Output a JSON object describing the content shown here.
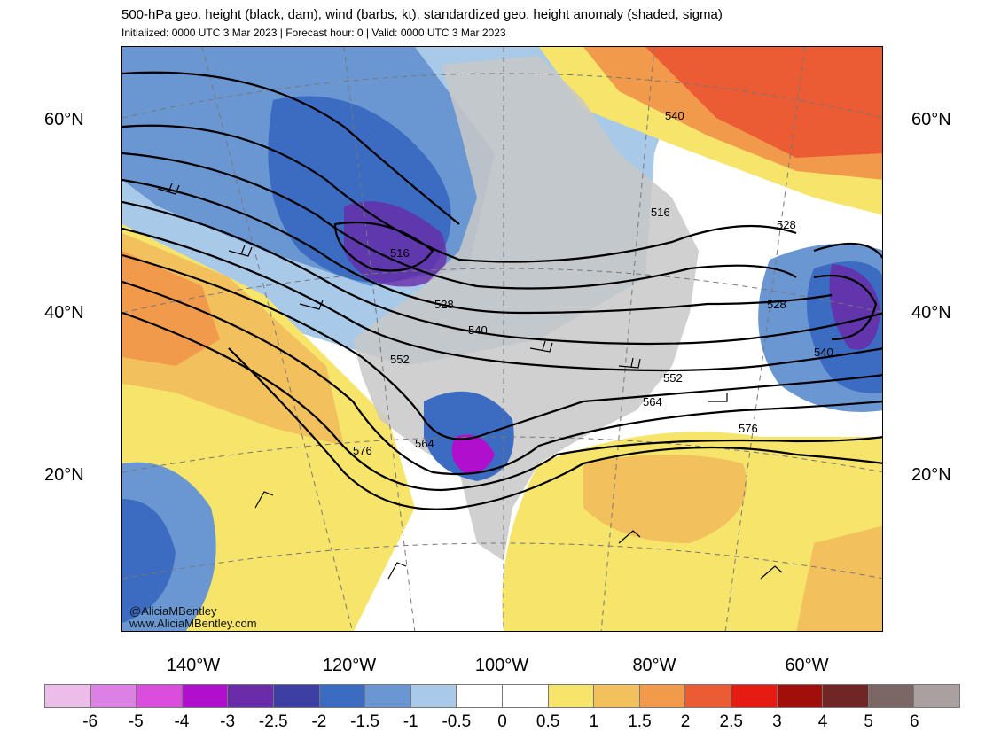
{
  "title": "500-hPa geo. height (black, dam), wind (barbs, kt), standardized geo. height anomaly (shaded, sigma)",
  "subtitle": "Initialized: 0000 UTC 3 Mar 2023 | Forecast hour: 0 | Valid: 0000 UTC 3 Mar 2023",
  "credit": [
    "@AliciaMBentley",
    "www.AliciaMBentley.com"
  ],
  "lat_labels": {
    "left_60": "60°N",
    "left_40": "40°N",
    "left_20": "20°N",
    "right_60": "60°N",
    "right_40": "40°N",
    "right_20": "20°N"
  },
  "lon_labels": [
    "140°W",
    "120°W",
    "100°W",
    "80°W",
    "60°W"
  ],
  "contour_labels": [
    "516",
    "516",
    "528",
    "528",
    "540",
    "540",
    "540",
    "552",
    "552",
    "564",
    "564",
    "576",
    "576",
    "528"
  ],
  "colorbar": {
    "colors": [
      "#ebbde8",
      "#dd80e6",
      "#d94edc",
      "#b00fcd",
      "#6a2ca8",
      "#3e3fa3",
      "#3b6cc1",
      "#6a97d2",
      "#a9c9e8",
      "#ffffff",
      "#ffffff",
      "#f6e46b",
      "#f2c05c",
      "#f29a4c",
      "#ec5c34",
      "#e61c13",
      "#a10f0b",
      "#6f2625",
      "#7b6866",
      "#aaa0a0"
    ],
    "ticks": [
      "-6",
      "-5",
      "-4",
      "-3",
      "-2.5",
      "-2",
      "-1.5",
      "-1",
      "-0.5",
      "0",
      "0.5",
      "1",
      "1.5",
      "2",
      "2.5",
      "3",
      "4",
      "5",
      "6"
    ]
  }
}
